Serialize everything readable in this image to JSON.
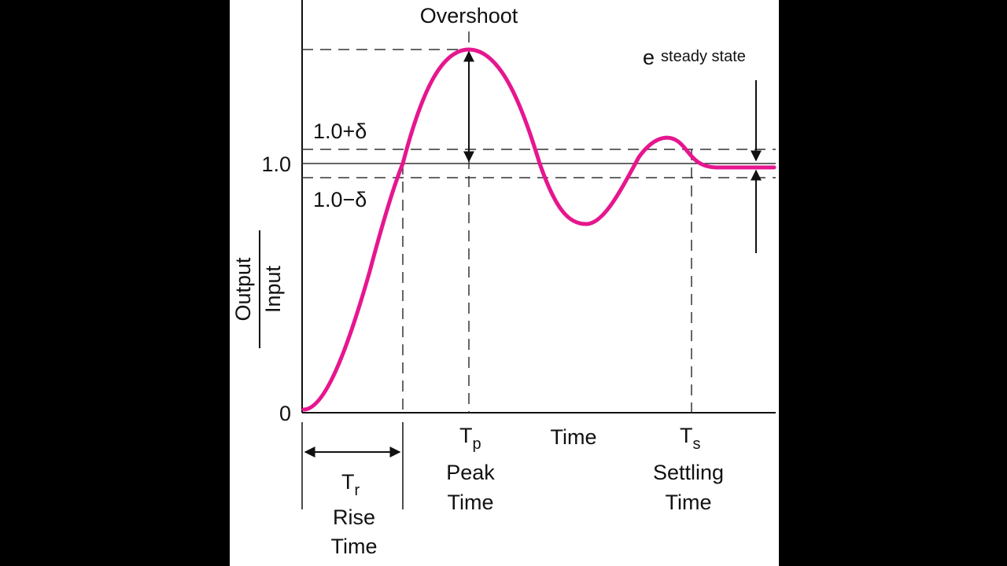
{
  "labels": {
    "overshoot": "Overshoot",
    "e_main": "e",
    "e_sub": "steady state",
    "upper_band": "1.0+δ",
    "lower_band": "1.0−δ",
    "one": "1.0",
    "zero": "0",
    "y_numerator": "Output",
    "y_denominator": "Input",
    "tp_main": "T",
    "tp_sub": "p",
    "tp_line1": "Peak",
    "tp_line2": "Time",
    "x_axis": "Time",
    "ts_main": "T",
    "ts_sub": "s",
    "ts_line1": "Settling",
    "ts_line2": "Time",
    "tr_main": "T",
    "tr_sub": "r",
    "tr_line1": "Rise",
    "tr_line2": "Time"
  },
  "curve": {
    "color": "#e6168f",
    "description_values": {
      "final_value": 1.0,
      "peak_value": 1.48,
      "undershoot_value": 0.76,
      "second_peak_value": 1.1
    }
  },
  "colors": {
    "background": "#000000",
    "panel": "#ffffff",
    "ink": "#111111"
  }
}
